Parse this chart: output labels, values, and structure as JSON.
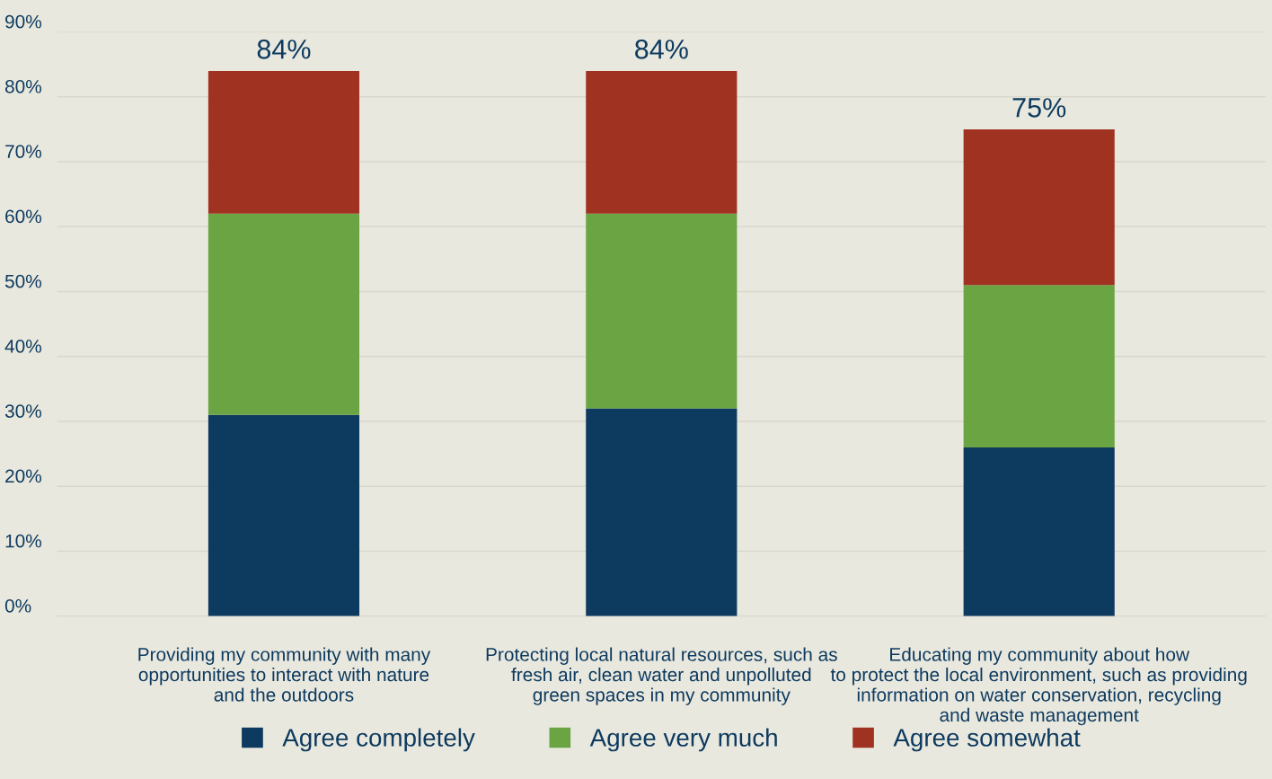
{
  "chart_data": {
    "type": "bar",
    "stacked": true,
    "categories": [
      "Providing my community with many\nopportunities to interact with nature\nand the outdoors",
      "Protecting local natural resources, such as\nfresh air, clean water and unpolluted\ngreen spaces in my community",
      "Educating my community about how\nto protect the local environment, such as providing\ninformation on water conservation, recycling\nand waste management"
    ],
    "series": [
      {
        "name": "Agree completely",
        "color": "#0d3a5f",
        "values": [
          31,
          32,
          26
        ]
      },
      {
        "name": "Agree very much",
        "color": "#6aa443",
        "values": [
          31,
          30,
          25
        ]
      },
      {
        "name": "Agree somewhat",
        "color": "#a03222",
        "values": [
          22,
          22,
          24
        ]
      }
    ],
    "totals": [
      "84%",
      "84%",
      "75%"
    ],
    "ylim": [
      0,
      90
    ],
    "yticks": [
      {
        "value": 0,
        "label": "0%"
      },
      {
        "value": 10,
        "label": "10%"
      },
      {
        "value": 20,
        "label": "20%"
      },
      {
        "value": 30,
        "label": "30%"
      },
      {
        "value": 40,
        "label": "40%"
      },
      {
        "value": 50,
        "label": "50%"
      },
      {
        "value": 60,
        "label": "60%"
      },
      {
        "value": 70,
        "label": "70%"
      },
      {
        "value": 80,
        "label": "80%"
      },
      {
        "value": 90,
        "label": "90%"
      }
    ],
    "grid": "y",
    "legend": "bottom"
  }
}
